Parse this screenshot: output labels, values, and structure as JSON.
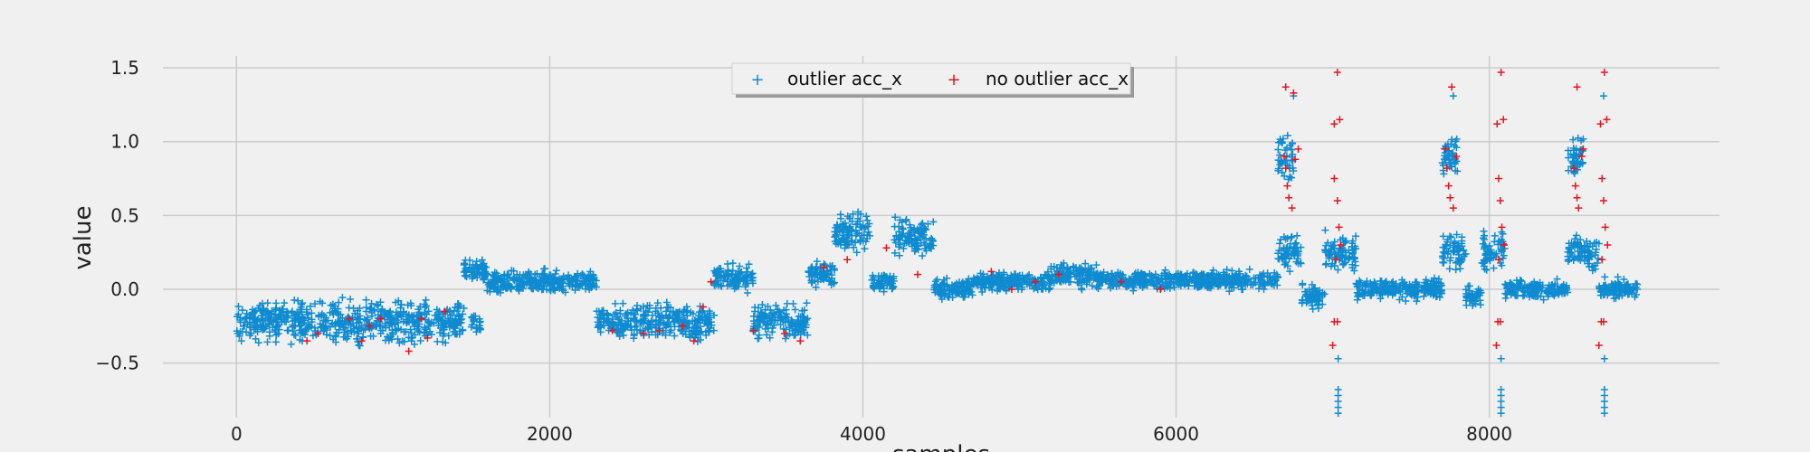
{
  "chart_data": {
    "type": "scatter",
    "title": "",
    "xlabel": "samples",
    "ylabel": "value",
    "xlim": [
      -470,
      9470
    ],
    "ylim": [
      -0.87,
      1.58
    ],
    "xticks": [
      0,
      2000,
      4000,
      6000,
      8000
    ],
    "yticks": [
      -0.5,
      0.0,
      0.5,
      1.0,
      1.5
    ],
    "xtick_labels": [
      "0",
      "2000",
      "4000",
      "6000",
      "8000"
    ],
    "ytick_labels": [
      "−0.5",
      "0.0",
      "0.5",
      "1.0",
      "1.5"
    ],
    "grid": true,
    "legend": {
      "placement": "top-center",
      "columns": 2
    },
    "colors": {
      "outlier": "#0e8bd1",
      "no_outlier": "#e8141c",
      "background": "#f0f0f0",
      "grid": "#cbcbcb"
    },
    "series": [
      {
        "name": "outlier acc_x",
        "marker": "+",
        "segments": [
          [
            0,
            1460,
            -0.22,
            0.11
          ],
          [
            1450,
            1600,
            0.12,
            0.06
          ],
          [
            1500,
            1560,
            -0.25,
            0.06
          ],
          [
            1600,
            2300,
            0.05,
            0.06
          ],
          [
            2300,
            3050,
            -0.22,
            0.1
          ],
          [
            3050,
            3300,
            0.08,
            0.07
          ],
          [
            3300,
            3650,
            -0.22,
            0.09
          ],
          [
            3650,
            3820,
            0.1,
            0.07
          ],
          [
            3820,
            4050,
            0.4,
            0.1
          ],
          [
            4050,
            4200,
            0.05,
            0.05
          ],
          [
            4200,
            4450,
            0.35,
            0.1
          ],
          [
            4450,
            4700,
            0.0,
            0.05
          ],
          [
            4700,
            5200,
            0.05,
            0.05
          ],
          [
            5200,
            5500,
            0.1,
            0.07
          ],
          [
            5500,
            6000,
            0.06,
            0.05
          ],
          [
            6000,
            6650,
            0.06,
            0.05
          ],
          [
            6650,
            6750,
            0.9,
            0.12
          ],
          [
            6650,
            6800,
            0.25,
            0.1
          ],
          [
            6800,
            6950,
            -0.05,
            0.06
          ],
          [
            6950,
            7150,
            0.25,
            0.1
          ],
          [
            7150,
            7700,
            0.0,
            0.05
          ],
          [
            7700,
            7800,
            0.9,
            0.12
          ],
          [
            7700,
            7850,
            0.25,
            0.1
          ],
          [
            7850,
            7950,
            -0.05,
            0.06
          ],
          [
            7950,
            8100,
            0.25,
            0.1
          ],
          [
            8100,
            8500,
            0.0,
            0.05
          ],
          [
            8500,
            8600,
            0.9,
            0.12
          ],
          [
            8500,
            8700,
            0.25,
            0.1
          ],
          [
            8700,
            8950,
            0.0,
            0.05
          ]
        ],
        "extra_points": [
          [
            7035,
            -0.68
          ],
          [
            7035,
            -0.72
          ],
          [
            7035,
            -0.76
          ],
          [
            7035,
            -0.8
          ],
          [
            7035,
            -0.84
          ],
          [
            7035,
            -0.47
          ],
          [
            8075,
            -0.68
          ],
          [
            8075,
            -0.72
          ],
          [
            8075,
            -0.76
          ],
          [
            8075,
            -0.8
          ],
          [
            8075,
            -0.84
          ],
          [
            8075,
            -0.47
          ],
          [
            8735,
            -0.68
          ],
          [
            8735,
            -0.72
          ],
          [
            8735,
            -0.76
          ],
          [
            8735,
            -0.8
          ],
          [
            8735,
            -0.84
          ],
          [
            8735,
            -0.47
          ],
          [
            6750,
            1.31
          ],
          [
            7770,
            1.31
          ],
          [
            8730,
            1.31
          ]
        ]
      },
      {
        "name": "no outlier acc_x",
        "marker": "+",
        "points": [
          [
            450,
            -0.35
          ],
          [
            520,
            -0.3
          ],
          [
            720,
            -0.2
          ],
          [
            800,
            -0.35
          ],
          [
            850,
            -0.25
          ],
          [
            920,
            -0.2
          ],
          [
            1100,
            -0.42
          ],
          [
            1180,
            -0.2
          ],
          [
            1220,
            -0.33
          ],
          [
            1330,
            -0.15
          ],
          [
            2400,
            -0.28
          ],
          [
            2600,
            -0.3
          ],
          [
            2700,
            -0.28
          ],
          [
            2850,
            -0.25
          ],
          [
            2920,
            -0.35
          ],
          [
            2980,
            -0.12
          ],
          [
            3030,
            0.05
          ],
          [
            3300,
            -0.28
          ],
          [
            3500,
            -0.3
          ],
          [
            3600,
            -0.35
          ],
          [
            3750,
            0.15
          ],
          [
            3900,
            0.2
          ],
          [
            4150,
            0.28
          ],
          [
            4350,
            0.1
          ],
          [
            4820,
            0.12
          ],
          [
            4950,
            0.0
          ],
          [
            5100,
            0.05
          ],
          [
            5250,
            0.1
          ],
          [
            5650,
            0.05
          ],
          [
            5900,
            0.0
          ],
          [
            6700,
            1.37
          ],
          [
            6750,
            1.33
          ],
          [
            6700,
            0.82
          ],
          [
            6710,
            0.7
          ],
          [
            6720,
            0.62
          ],
          [
            6740,
            0.55
          ],
          [
            6760,
            0.88
          ],
          [
            6780,
            0.95
          ],
          [
            6690,
            0.9
          ],
          [
            7010,
            1.12
          ],
          [
            7030,
            1.47
          ],
          [
            7045,
            1.15
          ],
          [
            7010,
            0.75
          ],
          [
            7030,
            0.6
          ],
          [
            7040,
            0.42
          ],
          [
            7050,
            0.3
          ],
          [
            7020,
            0.2
          ],
          [
            7000,
            -0.38
          ],
          [
            7030,
            -0.22
          ],
          [
            7010,
            -0.22
          ],
          [
            7760,
            1.37
          ],
          [
            7730,
            0.82
          ],
          [
            7740,
            0.7
          ],
          [
            7750,
            0.62
          ],
          [
            7770,
            0.55
          ],
          [
            7790,
            0.9
          ],
          [
            7720,
            0.95
          ],
          [
            8050,
            1.12
          ],
          [
            8075,
            1.47
          ],
          [
            8090,
            1.15
          ],
          [
            8060,
            0.75
          ],
          [
            8070,
            0.6
          ],
          [
            8080,
            0.42
          ],
          [
            8095,
            0.3
          ],
          [
            8060,
            0.2
          ],
          [
            8045,
            -0.38
          ],
          [
            8070,
            -0.22
          ],
          [
            8055,
            -0.22
          ],
          [
            8560,
            1.37
          ],
          [
            8540,
            0.82
          ],
          [
            8550,
            0.7
          ],
          [
            8560,
            0.62
          ],
          [
            8570,
            0.55
          ],
          [
            8590,
            0.9
          ],
          [
            8600,
            0.95
          ],
          [
            8710,
            1.12
          ],
          [
            8735,
            1.47
          ],
          [
            8750,
            1.15
          ],
          [
            8720,
            0.75
          ],
          [
            8730,
            0.6
          ],
          [
            8740,
            0.42
          ],
          [
            8755,
            0.3
          ],
          [
            8720,
            0.2
          ],
          [
            8700,
            -0.38
          ],
          [
            8730,
            -0.22
          ],
          [
            8715,
            -0.22
          ]
        ]
      }
    ]
  }
}
